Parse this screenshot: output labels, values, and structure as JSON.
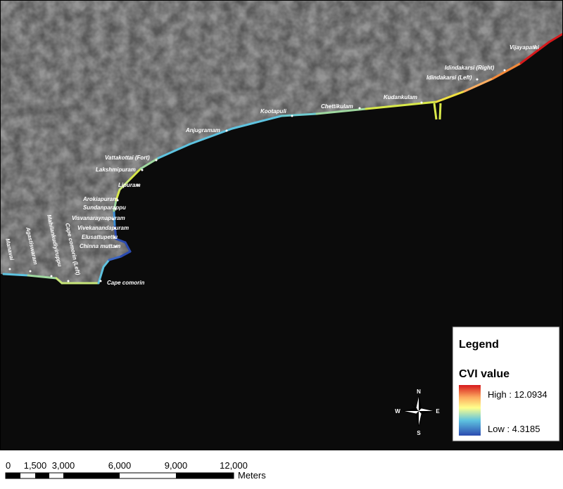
{
  "places": [
    "Vijayapathi",
    "Idindakarsi (Right)",
    "Idindakarsi (Left)",
    "Kudankulam",
    "Chettikulam",
    "Kootapuli",
    "Anjugramam",
    "Vattakottai (Fort)",
    "Lakshmipuram",
    "Lipuram",
    "Arokiapuram",
    "Sundanparappu",
    "Visvanaraynapuram",
    "Vivekanandapuram",
    "Elusattupettu",
    "Chinna muttam",
    "Cape comorin"
  ],
  "rotated_places": [
    "Manavai",
    "Agastiswaram",
    "Mahilankudiyiruppu",
    "Cape comorin (Left)"
  ],
  "legend": {
    "title": "Legend",
    "field": "CVI value",
    "high": "High : 12.0934",
    "low": "Low : 4.3185"
  },
  "compass": {
    "n": "N",
    "s": "S",
    "e": "E",
    "w": "W"
  },
  "scale": {
    "ticks": [
      "0",
      "1,500",
      "3,000",
      "6,000",
      "9,000",
      "12,000"
    ],
    "unit": "Meters"
  }
}
